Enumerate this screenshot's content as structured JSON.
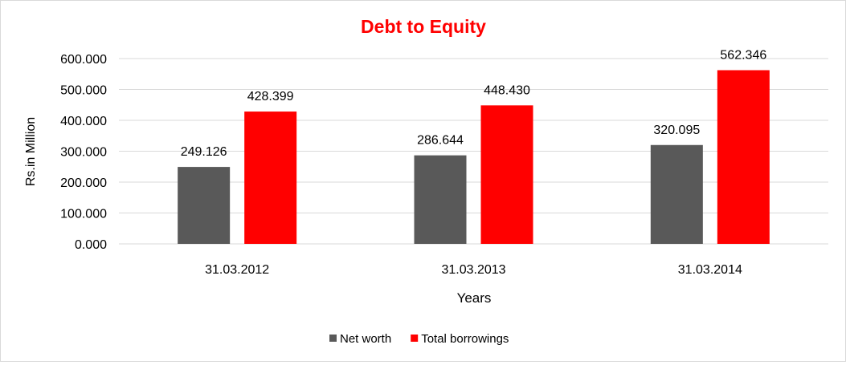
{
  "chart_data": {
    "type": "bar",
    "title": "Debt to Equity",
    "xlabel": "Years",
    "ylabel": "Rs.in Million",
    "ylim": [
      0,
      600
    ],
    "y_ticks": [
      "0.000",
      "100.000",
      "200.000",
      "300.000",
      "400.000",
      "500.000",
      "600.000"
    ],
    "categories": [
      "31.03.2012",
      "31.03.2013",
      "31.03.2014"
    ],
    "series": [
      {
        "name": "Net worth",
        "color": "#595959",
        "values": [
          249.126,
          286.644,
          320.095
        ],
        "labels": [
          "249.126",
          "286.644",
          "320.095"
        ]
      },
      {
        "name": "Total borrowings",
        "color": "#ff0000",
        "values": [
          428.399,
          448.43,
          562.346
        ],
        "labels": [
          "428.399",
          "448.430",
          "562.346"
        ]
      }
    ],
    "grid": true,
    "legend": "bottom",
    "title_color": "#ff0000"
  }
}
